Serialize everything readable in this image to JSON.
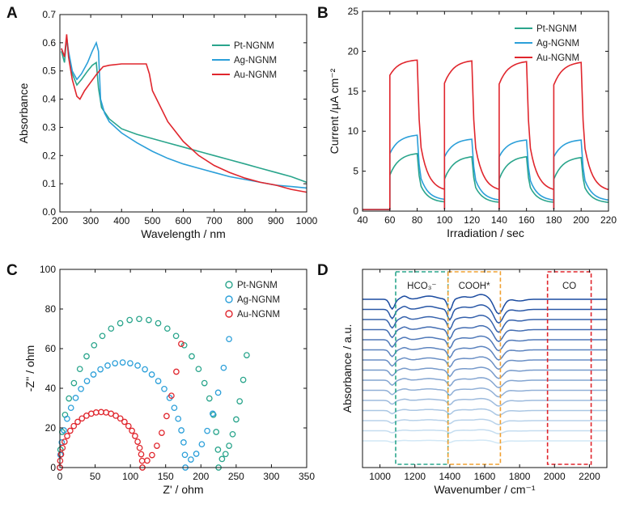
{
  "chart_data": [
    {
      "panel": "A",
      "type": "line",
      "xlabel": "Wavelength / nm",
      "ylabel": "Absorbance",
      "xlim": [
        200,
        1000
      ],
      "ylim": [
        0.0,
        0.7
      ],
      "xticks": [
        "200",
        "300",
        "400",
        "500",
        "600",
        "700",
        "800",
        "900",
        "1000"
      ],
      "yticks": [
        "0.0",
        "0.1",
        "0.2",
        "0.3",
        "0.4",
        "0.5",
        "0.6",
        "0.7"
      ],
      "legend_position": "right",
      "series": [
        {
          "name": "Pt-NGNM",
          "color": "#2aa58c",
          "x": [
            205,
            215,
            222,
            228,
            240,
            255,
            270,
            290,
            305,
            318,
            325,
            335,
            360,
            400,
            450,
            500,
            550,
            600,
            650,
            700,
            750,
            800,
            850,
            900,
            950,
            1000
          ],
          "y": [
            0.57,
            0.53,
            0.62,
            0.56,
            0.49,
            0.45,
            0.47,
            0.5,
            0.52,
            0.53,
            0.44,
            0.37,
            0.33,
            0.295,
            0.275,
            0.26,
            0.245,
            0.23,
            0.215,
            0.2,
            0.185,
            0.17,
            0.155,
            0.14,
            0.125,
            0.105
          ]
        },
        {
          "name": "Ag-NGNM",
          "color": "#2b9fd9",
          "x": [
            205,
            215,
            222,
            228,
            240,
            255,
            270,
            290,
            305,
            318,
            325,
            332,
            345,
            360,
            400,
            450,
            500,
            550,
            600,
            650,
            700,
            750,
            800,
            850,
            900,
            950,
            1000
          ],
          "y": [
            0.58,
            0.55,
            0.62,
            0.57,
            0.5,
            0.47,
            0.49,
            0.53,
            0.57,
            0.6,
            0.57,
            0.4,
            0.35,
            0.32,
            0.28,
            0.245,
            0.215,
            0.19,
            0.17,
            0.155,
            0.14,
            0.125,
            0.115,
            0.105,
            0.095,
            0.09,
            0.085
          ]
        },
        {
          "name": "Au-NGNM",
          "color": "#e0262d",
          "x": [
            205,
            215,
            222,
            228,
            240,
            255,
            265,
            280,
            300,
            320,
            340,
            360,
            400,
            450,
            480,
            490,
            500,
            550,
            600,
            650,
            700,
            750,
            800,
            850,
            900,
            950,
            1000
          ],
          "y": [
            0.58,
            0.55,
            0.63,
            0.55,
            0.47,
            0.41,
            0.4,
            0.43,
            0.46,
            0.49,
            0.515,
            0.52,
            0.525,
            0.525,
            0.525,
            0.49,
            0.43,
            0.32,
            0.25,
            0.2,
            0.165,
            0.14,
            0.12,
            0.105,
            0.095,
            0.08,
            0.07
          ]
        }
      ]
    },
    {
      "panel": "B",
      "type": "line",
      "xlabel": "Irradiation / sec",
      "ylabel": "Current /μA cm⁻²",
      "xlim": [
        40,
        220
      ],
      "ylim": [
        0,
        25
      ],
      "xticks": [
        "40",
        "60",
        "80",
        "100",
        "120",
        "140",
        "160",
        "180",
        "200",
        "220"
      ],
      "yticks": [
        "0",
        "5",
        "10",
        "15",
        "20",
        "25"
      ],
      "legend_position": "top-right",
      "light_on_off_seconds": [
        [
          60,
          80
        ],
        [
          100,
          120
        ],
        [
          140,
          160
        ],
        [
          180,
          200
        ]
      ],
      "series": [
        {
          "name": "Pt-NGNM",
          "color": "#2aa58c",
          "dark_level": 0.2,
          "on_start": [
            4.5,
            4.0,
            4.0,
            4.0
          ],
          "on_end": [
            7.2,
            6.8,
            6.8,
            6.7
          ]
        },
        {
          "name": "Ag-NGNM",
          "color": "#2b9fd9",
          "dark_level": 0.2,
          "on_start": [
            7.2,
            6.8,
            6.8,
            6.8
          ],
          "on_end": [
            9.5,
            9.0,
            8.9,
            8.9
          ]
        },
        {
          "name": "Au-NGNM",
          "color": "#e0262d",
          "dark_level": 0.2,
          "on_start": [
            17.0,
            16.0,
            15.9,
            15.8
          ],
          "on_end": [
            18.9,
            18.8,
            18.7,
            18.6
          ]
        }
      ]
    },
    {
      "panel": "C",
      "type": "scatter",
      "xlabel": "Z' / ohm",
      "ylabel": "-Z'' / ohm",
      "xlim": [
        0,
        350
      ],
      "ylim": [
        0,
        100
      ],
      "xticks": [
        "0",
        "50",
        "100",
        "150",
        "200",
        "250",
        "300",
        "350"
      ],
      "yticks": [
        "0",
        "20",
        "40",
        "60",
        "80",
        "100"
      ],
      "legend_position": "top-right",
      "series": [
        {
          "name": "Pt-NGNM",
          "color": "#2aa58c",
          "semicircle_x_range": [
            0,
            225
          ],
          "peak_y": 75,
          "tail_end": [
            265,
            56
          ]
        },
        {
          "name": "Ag-NGNM",
          "color": "#2b9fd9",
          "semicircle_x_range": [
            0,
            178
          ],
          "peak_y": 53,
          "tail_end": [
            240,
            65
          ]
        },
        {
          "name": "Au-NGNM",
          "color": "#e0262d",
          "semicircle_x_range": [
            0,
            117
          ],
          "peak_y": 28,
          "tail_end": [
            172,
            63
          ]
        }
      ]
    },
    {
      "panel": "D",
      "type": "line",
      "xlabel": "Wavenumber / cm⁻¹",
      "ylabel": "Absorbance / a.u.",
      "xlim": [
        900,
        2300
      ],
      "xticks": [
        "1000",
        "1200",
        "1400",
        "1600",
        "1800",
        "2000",
        "2200"
      ],
      "spectra_count": 15,
      "regions": [
        {
          "label": "HCO₃⁻",
          "x_range": [
            1090,
            1390
          ],
          "color": "#2aa58c"
        },
        {
          "label": "COOH*",
          "x_range": [
            1390,
            1690
          ],
          "color": "#f0a030"
        },
        {
          "label": "CO",
          "x_range": [
            1960,
            2210
          ],
          "color": "#e0262d"
        }
      ]
    }
  ]
}
